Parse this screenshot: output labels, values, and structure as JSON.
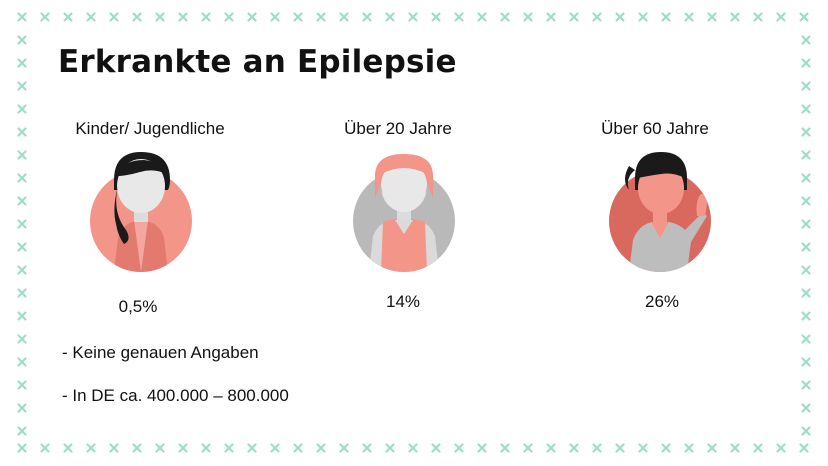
{
  "title": "Erkrankte an Epilepsie",
  "groups": [
    {
      "label": "Kinder/ Jugendliche",
      "value": "0,5%"
    },
    {
      "label": "Über 20 Jahre",
      "value": "14%"
    },
    {
      "label": "Über 60 Jahre",
      "value": "26%"
    }
  ],
  "notes": [
    "- Keine genauen Angaben",
    "- In DE ca. 400.000 – 800.000"
  ],
  "colors": {
    "border_cross": "#9fdcc9",
    "salmon": "#f4958a",
    "dark_salmon": "#d9695f",
    "grey": "#b9b9b9",
    "hair": "#1a1a1a"
  },
  "icons": [
    "child-avatar-icon",
    "adult-avatar-icon",
    "senior-avatar-icon",
    "cross-border-decoration"
  ]
}
